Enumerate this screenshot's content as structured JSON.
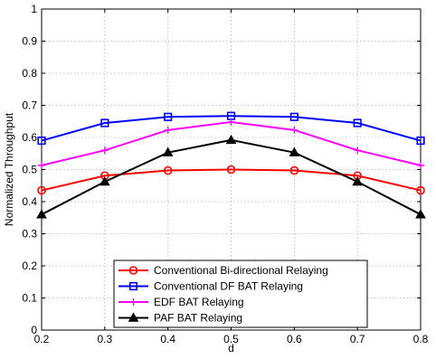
{
  "chart_data": {
    "type": "line",
    "title": "",
    "xlabel": "d",
    "ylabel": "Normalized Throughput",
    "xlim": [
      0.2,
      0.8
    ],
    "ylim": [
      0,
      1
    ],
    "xticks": [
      "0.2",
      "0.3",
      "0.4",
      "0.5",
      "0.6",
      "0.7",
      "0.8"
    ],
    "yticks": [
      "0",
      "0.1",
      "0.2",
      "0.3",
      "0.4",
      "0.5",
      "0.6",
      "0.7",
      "0.8",
      "0.9",
      "1"
    ],
    "grid": true,
    "legend_position": "bottom-center",
    "x": [
      0.2,
      0.3,
      0.4,
      0.5,
      0.6,
      0.7,
      0.8
    ],
    "series": [
      {
        "name": "Conventional Bi-directional Relaying",
        "color": "#ff0000",
        "marker": "circle",
        "values": [
          0.435,
          0.481,
          0.497,
          0.5,
          0.497,
          0.481,
          0.435
        ]
      },
      {
        "name": "Conventional DF BAT Relaying",
        "color": "#0000ff",
        "marker": "square",
        "values": [
          0.59,
          0.645,
          0.664,
          0.667,
          0.664,
          0.645,
          0.59
        ]
      },
      {
        "name": "EDF BAT Relaying",
        "color": "#ff00ff",
        "marker": "plus",
        "values": [
          0.513,
          0.56,
          0.623,
          0.648,
          0.623,
          0.56,
          0.513
        ]
      },
      {
        "name": "PAF BAT Relaying",
        "color": "#000000",
        "marker": "triangle",
        "values": [
          0.36,
          0.462,
          0.553,
          0.592,
          0.553,
          0.462,
          0.36
        ]
      }
    ]
  }
}
